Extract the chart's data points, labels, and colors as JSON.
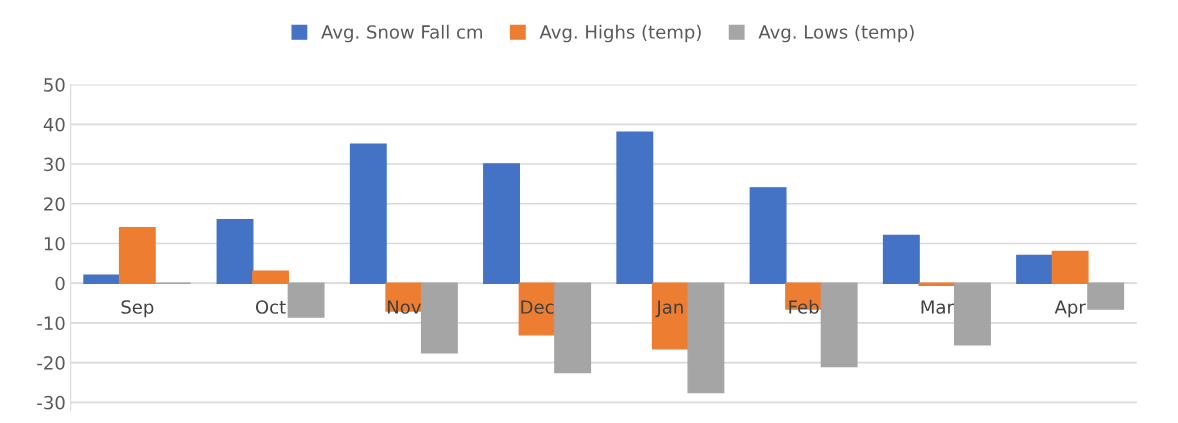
{
  "chart_data": {
    "type": "bar",
    "categories": [
      "Sep",
      "Oct",
      "Nov",
      "Dec",
      "Jan",
      "Feb",
      "Mar",
      "Apr"
    ],
    "series": [
      {
        "name": "Avg. Snow Fall cm",
        "color": "#4472c4",
        "values": [
          2,
          16,
          35,
          30,
          38,
          24,
          12,
          7
        ]
      },
      {
        "name": "Avg. Highs (temp)",
        "color": "#ed7d31",
        "values": [
          14,
          3,
          -7,
          -13,
          -16.5,
          -6.5,
          -0.5,
          8
        ]
      },
      {
        "name": "Avg. Lows (temp)",
        "color": "#a5a5a5",
        "values": [
          0,
          -8.5,
          -17.5,
          -22.5,
          -27.5,
          -21,
          -15.5,
          -6.5
        ]
      }
    ],
    "ylim": [
      -32,
      50
    ],
    "yticks": [
      -30,
      -20,
      -10,
      0,
      10,
      20,
      30,
      40,
      50
    ],
    "grid": "y",
    "legend": "top"
  }
}
